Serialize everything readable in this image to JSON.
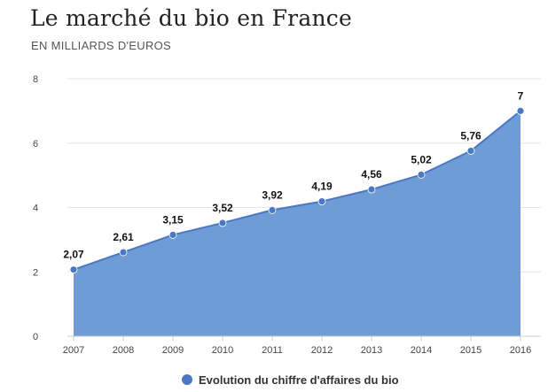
{
  "chart_data": {
    "type": "area",
    "title": "Le marché du bio en France",
    "subtitle": "EN MILLIARDS D'EUROS",
    "xlabel": "",
    "ylabel": "",
    "categories": [
      "2007",
      "2008",
      "2009",
      "2010",
      "2011",
      "2012",
      "2013",
      "2014",
      "2015",
      "2016"
    ],
    "series": [
      {
        "name": "Evolution du chiffre d'affaires du bio",
        "values": [
          2.07,
          2.61,
          3.15,
          3.52,
          3.92,
          4.19,
          4.56,
          5.02,
          5.76,
          7
        ],
        "labels": [
          "2,07",
          "2,61",
          "3,15",
          "3,52",
          "3,92",
          "4,19",
          "4,56",
          "5,02",
          "5,76",
          "7"
        ]
      }
    ],
    "ylim": [
      0,
      8
    ],
    "yticks": [
      0,
      2,
      4,
      6,
      8
    ],
    "ytick_labels": [
      "0",
      "2",
      "4",
      "6",
      "8"
    ],
    "grid": true,
    "legend": "bottom",
    "colors": {
      "area_fill": "#6f9bd6",
      "line": "#4a78c4",
      "marker": "#4a78c4",
      "grid": "#e6e6e6"
    }
  }
}
